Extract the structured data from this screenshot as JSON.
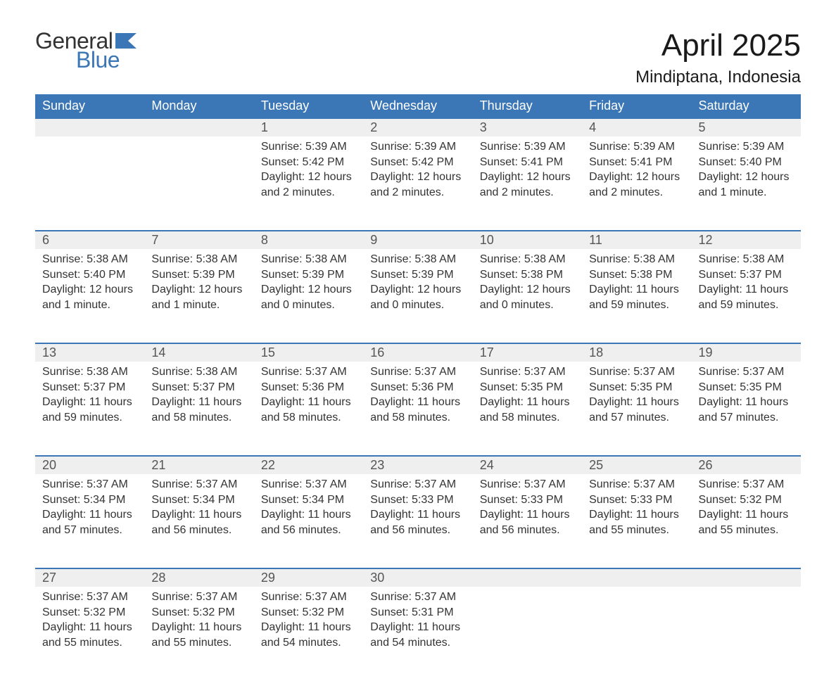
{
  "brand": {
    "word1": "General",
    "word2": "Blue",
    "word1_color": "#333333",
    "word2_color": "#3b76b6",
    "flag_color": "#3b76b6"
  },
  "title": "April 2025",
  "location": "Mindiptana, Indonesia",
  "colors": {
    "header_bg": "#3b76b6",
    "header_text": "#ffffff",
    "daynum_bg": "#efefef",
    "daynum_border": "#3b76b6",
    "text": "#333333",
    "background": "#ffffff"
  },
  "columns": [
    "Sunday",
    "Monday",
    "Tuesday",
    "Wednesday",
    "Thursday",
    "Friday",
    "Saturday"
  ],
  "weeks": [
    [
      null,
      null,
      {
        "day": "1",
        "sunrise": "Sunrise: 5:39 AM",
        "sunset": "Sunset: 5:42 PM",
        "daylight": "Daylight: 12 hours and 2 minutes."
      },
      {
        "day": "2",
        "sunrise": "Sunrise: 5:39 AM",
        "sunset": "Sunset: 5:42 PM",
        "daylight": "Daylight: 12 hours and 2 minutes."
      },
      {
        "day": "3",
        "sunrise": "Sunrise: 5:39 AM",
        "sunset": "Sunset: 5:41 PM",
        "daylight": "Daylight: 12 hours and 2 minutes."
      },
      {
        "day": "4",
        "sunrise": "Sunrise: 5:39 AM",
        "sunset": "Sunset: 5:41 PM",
        "daylight": "Daylight: 12 hours and 2 minutes."
      },
      {
        "day": "5",
        "sunrise": "Sunrise: 5:39 AM",
        "sunset": "Sunset: 5:40 PM",
        "daylight": "Daylight: 12 hours and 1 minute."
      }
    ],
    [
      {
        "day": "6",
        "sunrise": "Sunrise: 5:38 AM",
        "sunset": "Sunset: 5:40 PM",
        "daylight": "Daylight: 12 hours and 1 minute."
      },
      {
        "day": "7",
        "sunrise": "Sunrise: 5:38 AM",
        "sunset": "Sunset: 5:39 PM",
        "daylight": "Daylight: 12 hours and 1 minute."
      },
      {
        "day": "8",
        "sunrise": "Sunrise: 5:38 AM",
        "sunset": "Sunset: 5:39 PM",
        "daylight": "Daylight: 12 hours and 0 minutes."
      },
      {
        "day": "9",
        "sunrise": "Sunrise: 5:38 AM",
        "sunset": "Sunset: 5:39 PM",
        "daylight": "Daylight: 12 hours and 0 minutes."
      },
      {
        "day": "10",
        "sunrise": "Sunrise: 5:38 AM",
        "sunset": "Sunset: 5:38 PM",
        "daylight": "Daylight: 12 hours and 0 minutes."
      },
      {
        "day": "11",
        "sunrise": "Sunrise: 5:38 AM",
        "sunset": "Sunset: 5:38 PM",
        "daylight": "Daylight: 11 hours and 59 minutes."
      },
      {
        "day": "12",
        "sunrise": "Sunrise: 5:38 AM",
        "sunset": "Sunset: 5:37 PM",
        "daylight": "Daylight: 11 hours and 59 minutes."
      }
    ],
    [
      {
        "day": "13",
        "sunrise": "Sunrise: 5:38 AM",
        "sunset": "Sunset: 5:37 PM",
        "daylight": "Daylight: 11 hours and 59 minutes."
      },
      {
        "day": "14",
        "sunrise": "Sunrise: 5:38 AM",
        "sunset": "Sunset: 5:37 PM",
        "daylight": "Daylight: 11 hours and 58 minutes."
      },
      {
        "day": "15",
        "sunrise": "Sunrise: 5:37 AM",
        "sunset": "Sunset: 5:36 PM",
        "daylight": "Daylight: 11 hours and 58 minutes."
      },
      {
        "day": "16",
        "sunrise": "Sunrise: 5:37 AM",
        "sunset": "Sunset: 5:36 PM",
        "daylight": "Daylight: 11 hours and 58 minutes."
      },
      {
        "day": "17",
        "sunrise": "Sunrise: 5:37 AM",
        "sunset": "Sunset: 5:35 PM",
        "daylight": "Daylight: 11 hours and 58 minutes."
      },
      {
        "day": "18",
        "sunrise": "Sunrise: 5:37 AM",
        "sunset": "Sunset: 5:35 PM",
        "daylight": "Daylight: 11 hours and 57 minutes."
      },
      {
        "day": "19",
        "sunrise": "Sunrise: 5:37 AM",
        "sunset": "Sunset: 5:35 PM",
        "daylight": "Daylight: 11 hours and 57 minutes."
      }
    ],
    [
      {
        "day": "20",
        "sunrise": "Sunrise: 5:37 AM",
        "sunset": "Sunset: 5:34 PM",
        "daylight": "Daylight: 11 hours and 57 minutes."
      },
      {
        "day": "21",
        "sunrise": "Sunrise: 5:37 AM",
        "sunset": "Sunset: 5:34 PM",
        "daylight": "Daylight: 11 hours and 56 minutes."
      },
      {
        "day": "22",
        "sunrise": "Sunrise: 5:37 AM",
        "sunset": "Sunset: 5:34 PM",
        "daylight": "Daylight: 11 hours and 56 minutes."
      },
      {
        "day": "23",
        "sunrise": "Sunrise: 5:37 AM",
        "sunset": "Sunset: 5:33 PM",
        "daylight": "Daylight: 11 hours and 56 minutes."
      },
      {
        "day": "24",
        "sunrise": "Sunrise: 5:37 AM",
        "sunset": "Sunset: 5:33 PM",
        "daylight": "Daylight: 11 hours and 56 minutes."
      },
      {
        "day": "25",
        "sunrise": "Sunrise: 5:37 AM",
        "sunset": "Sunset: 5:33 PM",
        "daylight": "Daylight: 11 hours and 55 minutes."
      },
      {
        "day": "26",
        "sunrise": "Sunrise: 5:37 AM",
        "sunset": "Sunset: 5:32 PM",
        "daylight": "Daylight: 11 hours and 55 minutes."
      }
    ],
    [
      {
        "day": "27",
        "sunrise": "Sunrise: 5:37 AM",
        "sunset": "Sunset: 5:32 PM",
        "daylight": "Daylight: 11 hours and 55 minutes."
      },
      {
        "day": "28",
        "sunrise": "Sunrise: 5:37 AM",
        "sunset": "Sunset: 5:32 PM",
        "daylight": "Daylight: 11 hours and 55 minutes."
      },
      {
        "day": "29",
        "sunrise": "Sunrise: 5:37 AM",
        "sunset": "Sunset: 5:32 PM",
        "daylight": "Daylight: 11 hours and 54 minutes."
      },
      {
        "day": "30",
        "sunrise": "Sunrise: 5:37 AM",
        "sunset": "Sunset: 5:31 PM",
        "daylight": "Daylight: 11 hours and 54 minutes."
      },
      null,
      null,
      null
    ]
  ]
}
